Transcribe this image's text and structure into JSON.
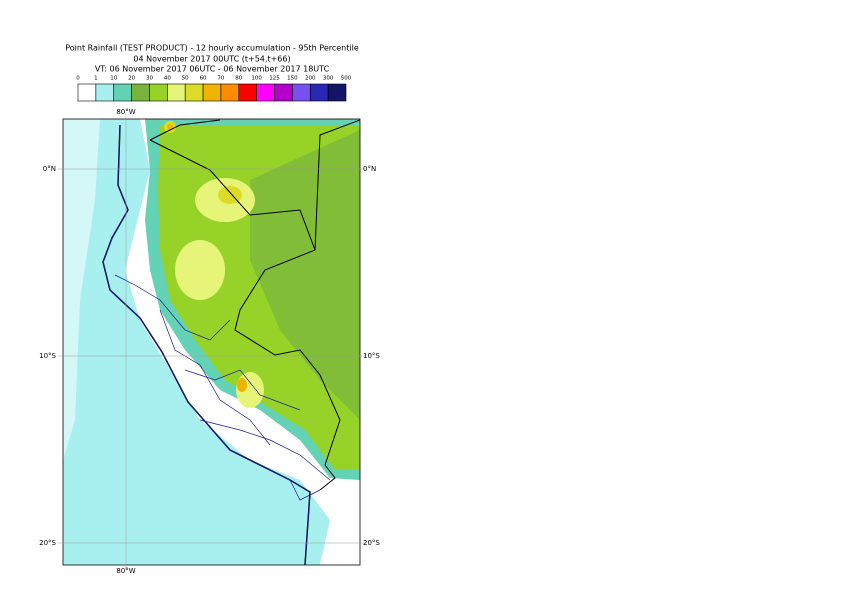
{
  "title": {
    "line1": "Point Rainfall (TEST PRODUCT) - 12 hourly accumulation - 95th Percentile",
    "line2": "04 November 2017 00UTC (t+54,t+66)",
    "line3": "VT: 06 November 2017 06UTC - 06 November 2017 18UTC"
  },
  "legend": {
    "ticks": [
      0,
      1,
      10,
      20,
      30,
      40,
      50,
      60,
      70,
      80,
      100,
      125,
      150,
      200,
      300,
      500
    ],
    "colors": [
      "#ffffff",
      "#a8f0f0",
      "#64d2b4",
      "#78b43c",
      "#96d228",
      "#e6f578",
      "#dcdc28",
      "#f0b400",
      "#ff8c00",
      "#ff0000",
      "#ff00ff",
      "#b400c8",
      "#7850f0",
      "#2828b4",
      "#141464"
    ]
  },
  "axes": {
    "longitude": "80°W",
    "latitudes": [
      "0°N",
      "10°S",
      "20°S"
    ]
  }
}
